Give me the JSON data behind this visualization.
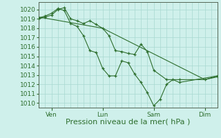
{
  "bg_color": "#cff0eb",
  "grid_color": "#a8d8d0",
  "line_color": "#2d6e2d",
  "marker_color": "#2d6e2d",
  "xlabel": "Pression niveau de la mer( hPa )",
  "xlabel_fontsize": 8,
  "ylim": [
    1009.5,
    1020.8
  ],
  "yticks": [
    1010,
    1011,
    1012,
    1013,
    1014,
    1015,
    1016,
    1017,
    1018,
    1019,
    1020
  ],
  "tick_fontsize": 6.5,
  "xtick_labels": [
    "Ven",
    "Lun",
    "Sam",
    "Dim"
  ],
  "xtick_positions": [
    12,
    60,
    108,
    156
  ],
  "xlim": [
    0,
    168
  ],
  "series1": [
    [
      0,
      1019.0,
      6,
      1019.2,
      12,
      1019.4,
      18,
      1020.0,
      24,
      1020.2,
      30,
      1019.0,
      36,
      1018.8,
      42,
      1018.5,
      48,
      1018.8,
      54,
      1018.4,
      60,
      1018.0,
      66,
      1017.2,
      72,
      1015.6,
      78,
      1015.5,
      84,
      1015.3,
      90,
      1015.2,
      96,
      1016.3,
      102,
      1015.5,
      108,
      1013.5,
      120,
      1012.5,
      132,
      1012.5,
      156,
      1012.5,
      168,
      1012.8
    ]
  ],
  "series2": [
    [
      0,
      1019.1,
      6,
      1019.3,
      12,
      1019.6,
      18,
      1020.1,
      24,
      1019.9,
      30,
      1018.5,
      36,
      1018.2,
      42,
      1017.2,
      48,
      1015.6,
      54,
      1015.4,
      60,
      1013.7,
      66,
      1012.9,
      72,
      1012.9,
      78,
      1014.5,
      84,
      1014.3,
      90,
      1013.1,
      96,
      1012.2,
      102,
      1011.1,
      108,
      1009.7,
      114,
      1010.4,
      120,
      1012.0,
      126,
      1012.5,
      132,
      1012.2,
      168,
      1012.9
    ]
  ],
  "series3": [
    [
      0,
      1019.2,
      60,
      1018.0,
      156,
      1012.5,
      168,
      1012.9
    ]
  ]
}
